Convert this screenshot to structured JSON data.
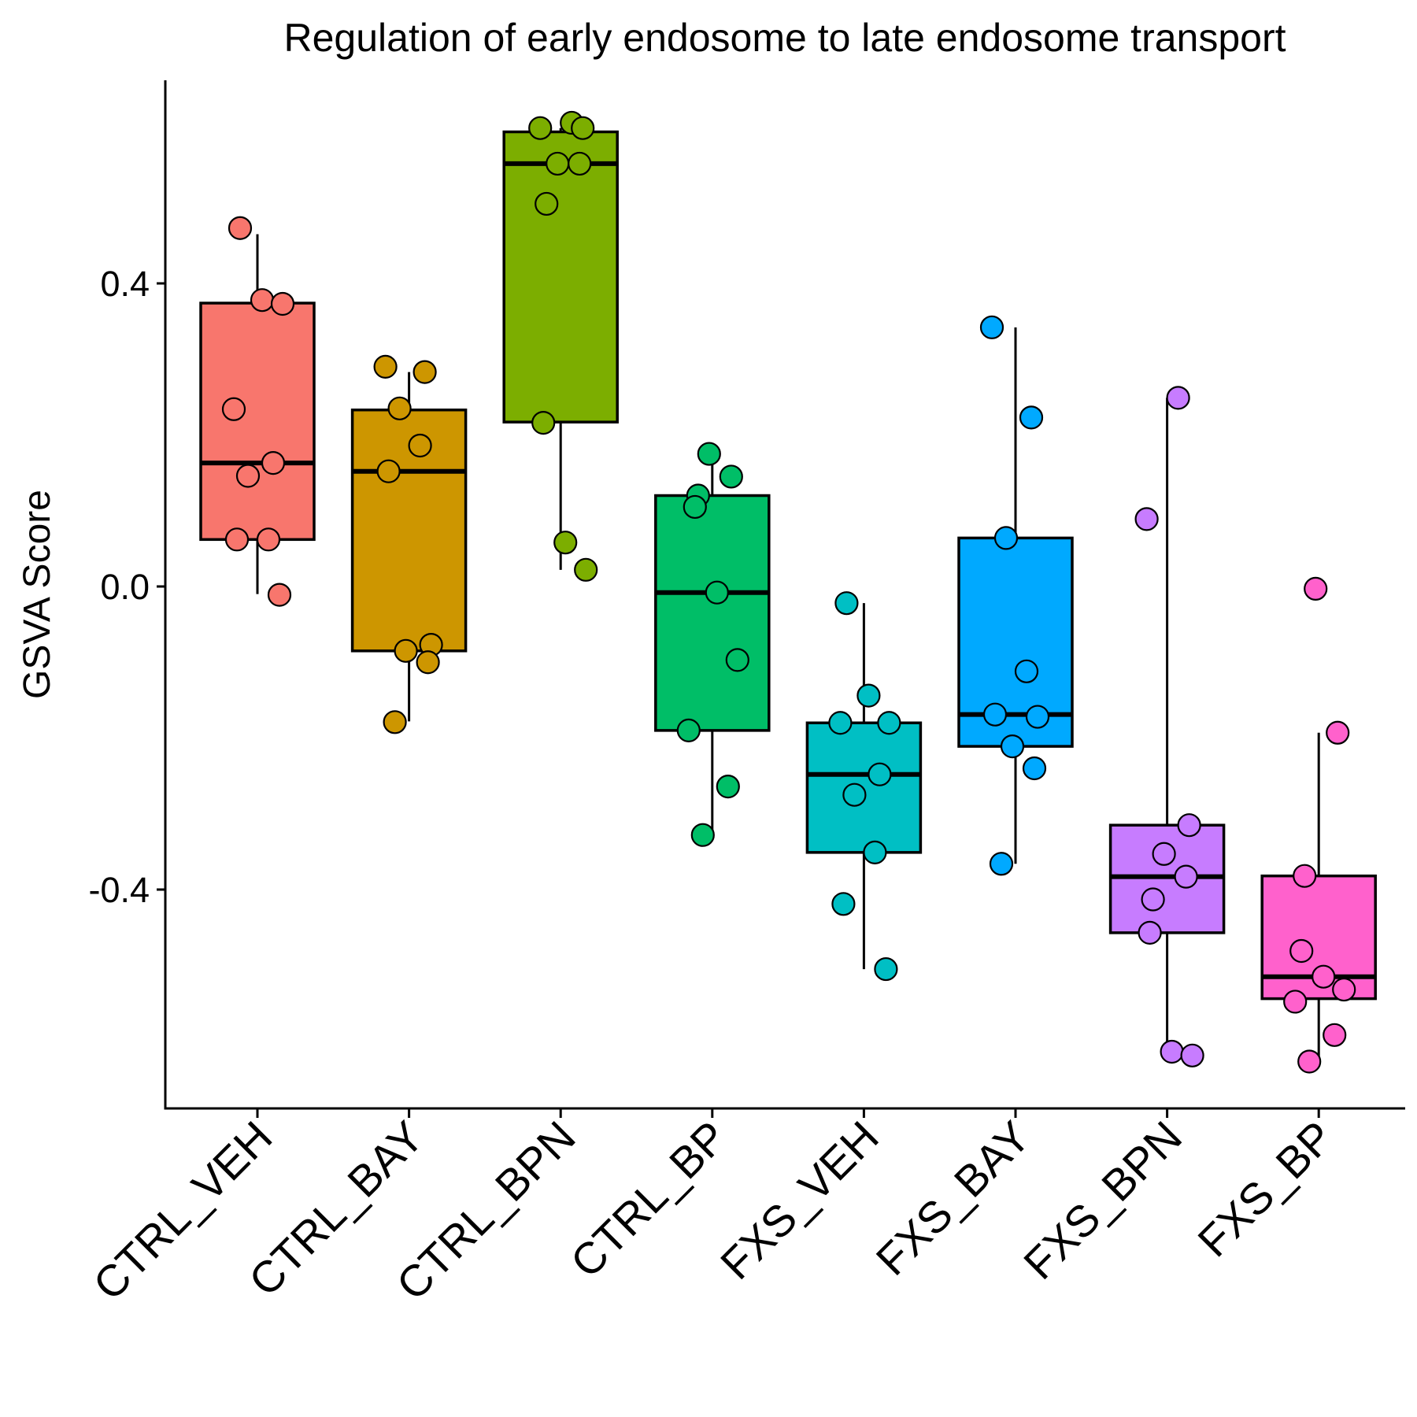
{
  "chart_data": {
    "type": "box",
    "title": "Regulation of early endosome to late endosome transport",
    "xlabel": "",
    "ylabel": "GSVA Score",
    "ylim": [
      -0.69,
      0.67
    ],
    "yticks": [
      0.4,
      0.0,
      -0.4
    ],
    "ytick_labels": [
      "0.4",
      "0.0",
      "-0.4"
    ],
    "grid": false,
    "legend": "none",
    "categories": [
      "CTRL_VEH",
      "CTRL_BAY",
      "CTRL_BPN",
      "CTRL_BP",
      "FXS_VEH",
      "FXS_BAY",
      "FXS_BPN",
      "FXS_BP"
    ],
    "colors": [
      "#F8766D",
      "#CD9600",
      "#7CAE00",
      "#00BE67",
      "#00BFC4",
      "#00A9FF",
      "#C77CFF",
      "#FF61CC"
    ],
    "boxes": [
      {
        "group": "CTRL_VEH",
        "whisker_low": -0.01,
        "q1": 0.062,
        "median": 0.163,
        "q3": 0.374,
        "whisker_high": 0.465
      },
      {
        "group": "CTRL_BAY",
        "whisker_low": -0.178,
        "q1": -0.085,
        "median": 0.152,
        "q3": 0.233,
        "whisker_high": 0.283
      },
      {
        "group": "CTRL_BPN",
        "whisker_low": 0.022,
        "q1": 0.217,
        "median": 0.558,
        "q3": 0.6,
        "whisker_high": 0.605
      },
      {
        "group": "CTRL_BP",
        "whisker_low": -0.327,
        "q1": -0.19,
        "median": -0.008,
        "q3": 0.12,
        "whisker_high": 0.17
      },
      {
        "group": "FXS_VEH",
        "whisker_low": -0.505,
        "q1": -0.351,
        "median": -0.248,
        "q3": -0.18,
        "whisker_high": -0.022
      },
      {
        "group": "FXS_BAY",
        "whisker_low": -0.366,
        "q1": -0.211,
        "median": -0.169,
        "q3": 0.064,
        "whisker_high": 0.342
      },
      {
        "group": "FXS_BPN",
        "whisker_low": -0.619,
        "q1": -0.457,
        "median": -0.383,
        "q3": -0.315,
        "whisker_high": 0.249
      },
      {
        "group": "FXS_BP",
        "whisker_low": -0.627,
        "q1": -0.544,
        "median": -0.515,
        "q3": -0.382,
        "whisker_high": -0.193
      }
    ],
    "points": [
      {
        "group": "CTRL_VEH",
        "values": [
          0.473,
          0.378,
          0.373,
          0.234,
          0.163,
          0.146,
          0.062,
          0.062,
          -0.011
        ]
      },
      {
        "group": "CTRL_BAY",
        "values": [
          0.29,
          0.283,
          0.235,
          0.186,
          0.152,
          -0.077,
          -0.085,
          -0.1,
          -0.179
        ]
      },
      {
        "group": "CTRL_BPN",
        "values": [
          0.612,
          0.605,
          0.605,
          0.558,
          0.558,
          0.505,
          0.216,
          0.058,
          0.022
        ]
      },
      {
        "group": "CTRL_BP",
        "values": [
          0.175,
          0.145,
          0.12,
          0.105,
          -0.008,
          -0.097,
          -0.19,
          -0.264,
          -0.328
        ]
      },
      {
        "group": "FXS_VEH",
        "values": [
          -0.022,
          -0.144,
          -0.18,
          -0.18,
          -0.248,
          -0.275,
          -0.351,
          -0.419,
          -0.505
        ]
      },
      {
        "group": "FXS_BAY",
        "values": [
          0.342,
          0.223,
          0.064,
          -0.112,
          -0.169,
          -0.172,
          -0.211,
          -0.24,
          -0.366
        ]
      },
      {
        "group": "FXS_BPN",
        "values": [
          0.249,
          0.089,
          -0.315,
          -0.353,
          -0.383,
          -0.413,
          -0.457,
          -0.614,
          -0.619
        ]
      },
      {
        "group": "FXS_BP",
        "values": [
          -0.003,
          -0.193,
          -0.382,
          -0.481,
          -0.515,
          -0.532,
          -0.548,
          -0.592,
          -0.627
        ]
      }
    ]
  }
}
